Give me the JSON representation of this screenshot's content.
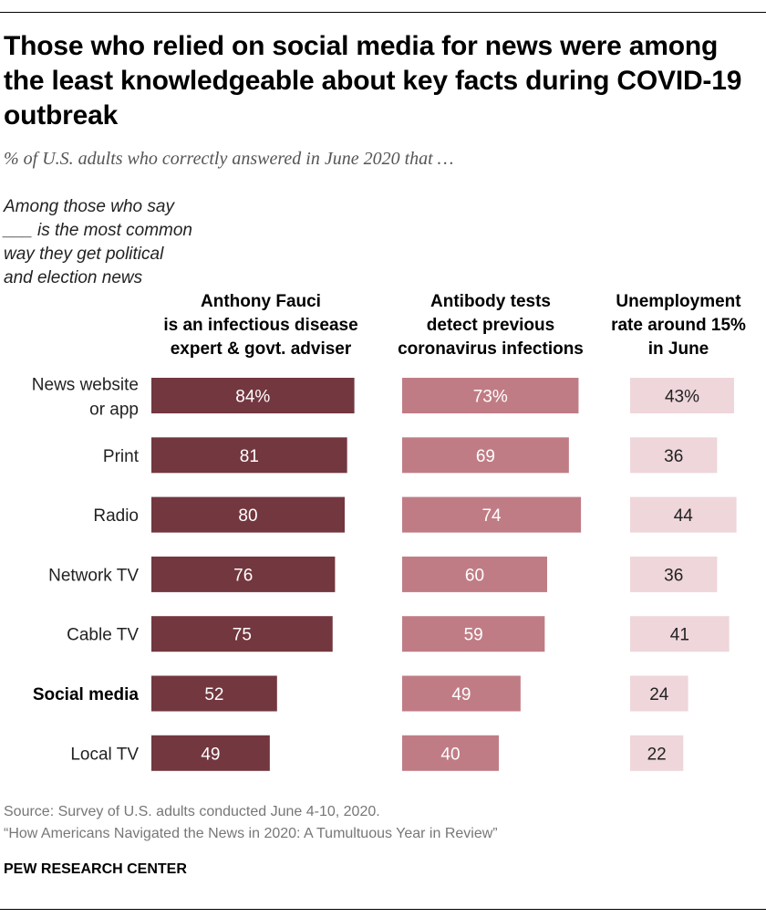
{
  "title": "Those who relied on social media for news were among the least knowledgeable about key facts during COVID-19 outbreak",
  "subtitle": "% of U.S. adults who correctly answered in June 2020 that …",
  "row_stub": "Among those who say ___ is the most common way they get political and election news",
  "source_line": "Source: Survey of U.S. adults conducted June 4-10, 2020.",
  "report_line": "“How Americans Navigated the News in 2020: A Tumultuous Year in Review”",
  "brand": "PEW RESEARCH CENTER",
  "colors": {
    "fauci": "#73373f",
    "antibody": "#c07c85",
    "unemployment": "#eed6da",
    "label_on_dark": "#ffffff",
    "label_on_light": "#222222"
  },
  "chart_data": {
    "type": "bar",
    "orientation": "horizontal",
    "layout": "small-multiples",
    "categories": [
      "News website or app",
      "Print",
      "Radio",
      "Network TV",
      "Cable TV",
      "Social media",
      "Local TV"
    ],
    "category_lines": [
      [
        "News website",
        "or app"
      ],
      [
        "Print"
      ],
      [
        "Radio"
      ],
      [
        "Network TV"
      ],
      [
        "Cable TV"
      ],
      [
        "Social media"
      ],
      [
        "Local TV"
      ]
    ],
    "highlight_category": "Social media",
    "series": [
      {
        "name": "Anthony Fauci is an infectious disease expert & govt. adviser",
        "name_lines": [
          "Anthony Fauci",
          "is an infectious disease",
          "expert & govt. adviser"
        ],
        "values": [
          84,
          81,
          80,
          76,
          75,
          52,
          49
        ],
        "labels": [
          "84%",
          "81",
          "80",
          "76",
          "75",
          "52",
          "49"
        ]
      },
      {
        "name": "Antibody tests detect previous coronavirus infections",
        "name_lines": [
          "Antibody tests",
          "detect previous",
          "coronavirus infections"
        ],
        "values": [
          73,
          69,
          74,
          60,
          59,
          49,
          40
        ],
        "labels": [
          "73%",
          "69",
          "74",
          "60",
          "59",
          "49",
          "40"
        ]
      },
      {
        "name": "Unemployment rate around 15% in June",
        "name_lines": [
          "Unemployment",
          "rate around 15%",
          "in June"
        ],
        "values": [
          43,
          36,
          44,
          36,
          41,
          24,
          22
        ],
        "labels": [
          "43%",
          "36",
          "44",
          "36",
          "41",
          "24",
          "22"
        ]
      }
    ],
    "unit": "%",
    "xlim": [
      0,
      100
    ],
    "grid": false,
    "legend": "none"
  }
}
